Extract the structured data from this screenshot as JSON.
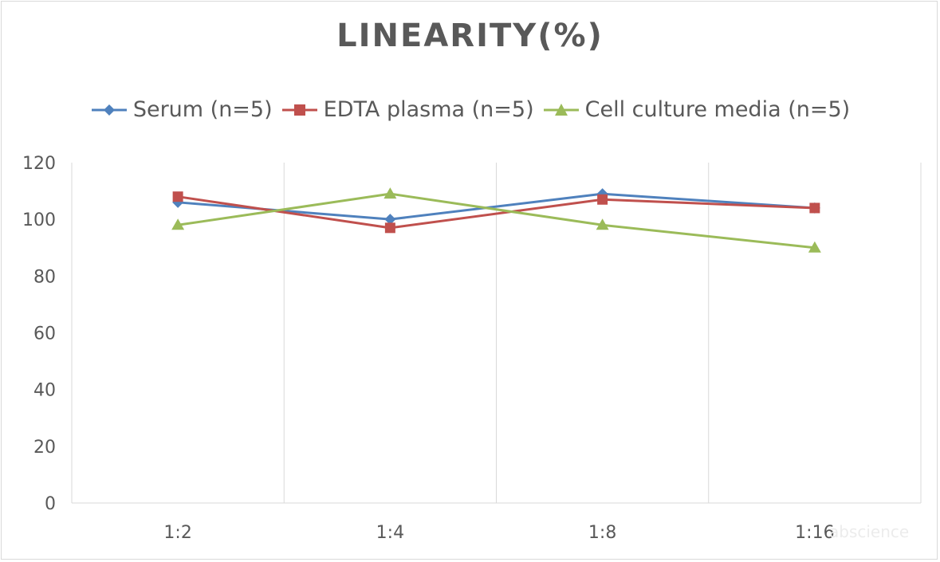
{
  "chart_data": {
    "type": "line",
    "title": "LINEARITY(%)",
    "xlabel": "",
    "ylabel": "",
    "categories": [
      "1:2",
      "1:4",
      "1:8",
      "1:16"
    ],
    "ylim": [
      0,
      120
    ],
    "yticks": [
      0,
      20,
      40,
      60,
      80,
      100,
      120
    ],
    "grid": "vertical",
    "legend_position": "top",
    "series": [
      {
        "name": "Serum (n=5)",
        "color": "#4f81bd",
        "marker": "diamond",
        "values": [
          106,
          100,
          109,
          104
        ]
      },
      {
        "name": "EDTA plasma (n=5)",
        "color": "#c0504d",
        "marker": "square",
        "values": [
          108,
          97,
          107,
          104
        ]
      },
      {
        "name": "Cell culture media (n=5)",
        "color": "#9bbb59",
        "marker": "triangle",
        "values": [
          98,
          109,
          98,
          90
        ]
      }
    ]
  },
  "watermark": "abscience"
}
